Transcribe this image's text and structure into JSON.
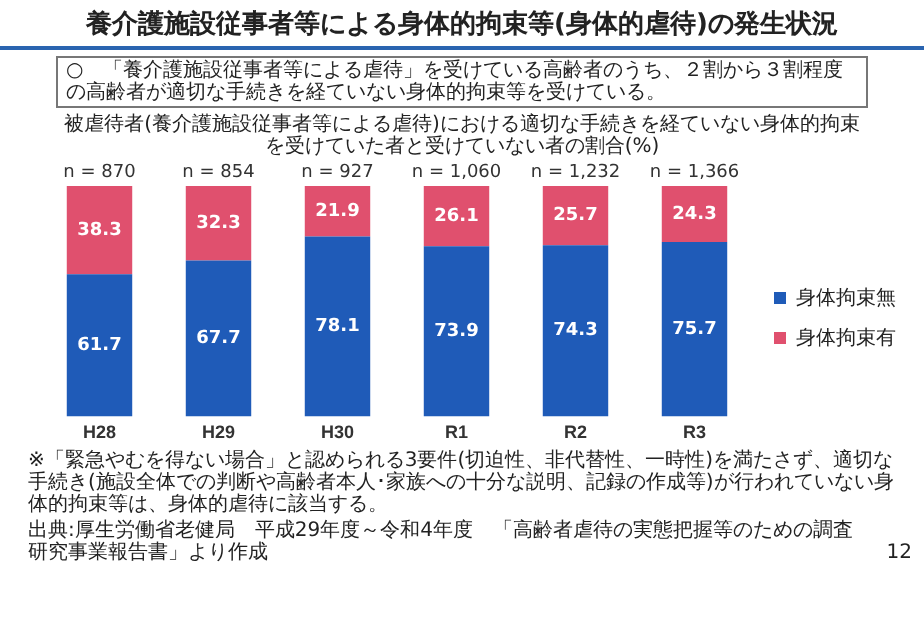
{
  "chart_data": {
    "type": "bar",
    "title": "養介護施設従事者等による身体的拘束等(身体的虐待)の発生状況",
    "subtitle": "被虐待者(養介護施設従事者等による虐待)における適切な手続きを経ていない身体的拘束を受けていた者と受けていない者の割合(%)",
    "categories": [
      "H28",
      "H29",
      "H30",
      "R1",
      "R2",
      "R3"
    ],
    "series": [
      {
        "name": "身体拘束無",
        "color": "#1f5bb8",
        "values": [
          61.7,
          67.7,
          78.1,
          73.9,
          74.3,
          75.7
        ]
      },
      {
        "name": "身体拘束有",
        "color": "#e0506e",
        "values": [
          38.3,
          32.3,
          21.9,
          26.1,
          25.7,
          24.3
        ]
      }
    ],
    "stacked": true,
    "tick_labels": "x",
    "data_labels": true,
    "legend": "right",
    "grid": false,
    "annotations": [
      {
        "text": "n = 870",
        "x": "H28",
        "y": 100
      },
      {
        "text": "n = 854",
        "x": "H29",
        "y": 100
      },
      {
        "text": "n = 927",
        "x": "H30",
        "y": 100
      },
      {
        "text": "n = 1,060",
        "x": "R1",
        "y": 100
      },
      {
        "text": "n = 1,232",
        "x": "R2",
        "y": 100
      },
      {
        "text": "n = 1,366",
        "x": "R3",
        "y": 100
      },
      "○　「養介護施設従事者等による虐待」を受けている高齢者のうち、２割から３割程度の高齢者が適切な手続きを経ていない身体的拘束等を受けている。",
      "※「緊急やむを得ない場合」と認められる3要件(切迫性、非代替性、一時性)を満たさず、適切な手続き(施設全体での判断や高齢者本人･家族への十分な説明、記録の作成等)が行われていない身体的拘束等は、身体的虐待に該当する。",
      "出典:厚生労働省老健局　平成29年度～令和4年度　「高齢者虐待の実態把握等のための調査研究事業報告書」より作成",
      "12"
    ]
  }
}
